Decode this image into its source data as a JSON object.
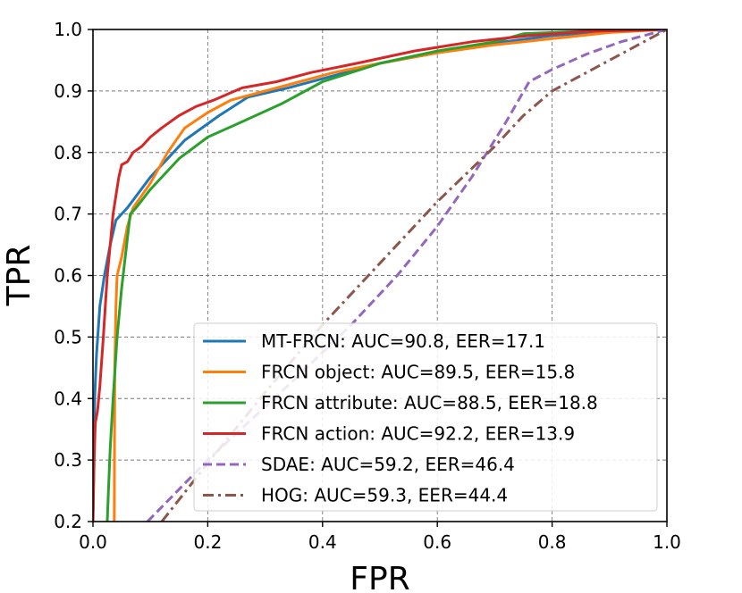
{
  "chart_data": {
    "type": "line",
    "title": "",
    "xlabel": "FPR",
    "ylabel": "TPR",
    "xlim": [
      0.0,
      1.0
    ],
    "ylim": [
      0.2,
      1.0
    ],
    "grid": true,
    "legend_position": "lower-right",
    "x_ticks": [
      {
        "value": 0.0,
        "label": "0.0"
      },
      {
        "value": 0.2,
        "label": "0.2"
      },
      {
        "value": 0.4,
        "label": "0.4"
      },
      {
        "value": 0.6,
        "label": "0.6"
      },
      {
        "value": 0.8,
        "label": "0.8"
      },
      {
        "value": 1.0,
        "label": "1.0"
      }
    ],
    "y_ticks": [
      {
        "value": 0.2,
        "label": "0.2"
      },
      {
        "value": 0.3,
        "label": "0.3"
      },
      {
        "value": 0.4,
        "label": "0.4"
      },
      {
        "value": 0.5,
        "label": "0.5"
      },
      {
        "value": 0.6,
        "label": "0.6"
      },
      {
        "value": 0.7,
        "label": "0.7"
      },
      {
        "value": 0.8,
        "label": "0.8"
      },
      {
        "value": 0.9,
        "label": "0.9"
      },
      {
        "value": 1.0,
        "label": "1.0"
      }
    ],
    "series": [
      {
        "name": "MT-FRCN: AUC=90.8, EER=17.1",
        "color": "#1f77b4",
        "dash": "solid",
        "points": [
          [
            0.0,
            0.2
          ],
          [
            0.003,
            0.4
          ],
          [
            0.006,
            0.47
          ],
          [
            0.012,
            0.55
          ],
          [
            0.02,
            0.6
          ],
          [
            0.03,
            0.65
          ],
          [
            0.04,
            0.69
          ],
          [
            0.06,
            0.71
          ],
          [
            0.1,
            0.76
          ],
          [
            0.16,
            0.82
          ],
          [
            0.22,
            0.86
          ],
          [
            0.27,
            0.89
          ],
          [
            0.34,
            0.905
          ],
          [
            0.42,
            0.925
          ],
          [
            0.5,
            0.945
          ],
          [
            0.6,
            0.962
          ],
          [
            0.7,
            0.978
          ],
          [
            0.8,
            0.99
          ],
          [
            0.9,
            0.997
          ],
          [
            1.0,
            1.0
          ]
        ]
      },
      {
        "name": "FRCN object: AUC=89.5, EER=15.8",
        "color": "#ff7f0e",
        "dash": "solid",
        "points": [
          [
            0.037,
            0.2
          ],
          [
            0.038,
            0.45
          ],
          [
            0.04,
            0.55
          ],
          [
            0.042,
            0.6
          ],
          [
            0.05,
            0.63
          ],
          [
            0.06,
            0.68
          ],
          [
            0.07,
            0.71
          ],
          [
            0.1,
            0.75
          ],
          [
            0.13,
            0.8
          ],
          [
            0.16,
            0.84
          ],
          [
            0.2,
            0.865
          ],
          [
            0.24,
            0.885
          ],
          [
            0.28,
            0.895
          ],
          [
            0.34,
            0.91
          ],
          [
            0.42,
            0.93
          ],
          [
            0.5,
            0.945
          ],
          [
            0.6,
            0.962
          ],
          [
            0.7,
            0.975
          ],
          [
            0.8,
            0.985
          ],
          [
            0.9,
            0.995
          ],
          [
            1.0,
            1.0
          ]
        ]
      },
      {
        "name": "FRCN attribute: AUC=88.5, EER=18.8",
        "color": "#2ca02c",
        "dash": "solid",
        "points": [
          [
            0.025,
            0.2
          ],
          [
            0.027,
            0.25
          ],
          [
            0.03,
            0.32
          ],
          [
            0.035,
            0.4
          ],
          [
            0.042,
            0.5
          ],
          [
            0.05,
            0.58
          ],
          [
            0.055,
            0.62
          ],
          [
            0.065,
            0.7
          ],
          [
            0.075,
            0.71
          ],
          [
            0.1,
            0.74
          ],
          [
            0.15,
            0.79
          ],
          [
            0.2,
            0.825
          ],
          [
            0.26,
            0.85
          ],
          [
            0.33,
            0.88
          ],
          [
            0.4,
            0.915
          ],
          [
            0.5,
            0.945
          ],
          [
            0.6,
            0.965
          ],
          [
            0.7,
            0.98
          ],
          [
            0.75,
            0.993
          ],
          [
            0.85,
            0.997
          ],
          [
            1.0,
            1.0
          ]
        ]
      },
      {
        "name": "FRCN action: AUC=92.2, EER=13.9",
        "color": "#d62728",
        "dash": "solid",
        "points": [
          [
            0.0,
            0.2
          ],
          [
            0.002,
            0.3
          ],
          [
            0.004,
            0.36
          ],
          [
            0.008,
            0.38
          ],
          [
            0.012,
            0.42
          ],
          [
            0.018,
            0.5
          ],
          [
            0.025,
            0.6
          ],
          [
            0.03,
            0.65
          ],
          [
            0.035,
            0.7
          ],
          [
            0.04,
            0.73
          ],
          [
            0.045,
            0.76
          ],
          [
            0.05,
            0.78
          ],
          [
            0.06,
            0.785
          ],
          [
            0.07,
            0.8
          ],
          [
            0.085,
            0.81
          ],
          [
            0.1,
            0.825
          ],
          [
            0.12,
            0.84
          ],
          [
            0.15,
            0.86
          ],
          [
            0.18,
            0.875
          ],
          [
            0.21,
            0.885
          ],
          [
            0.26,
            0.905
          ],
          [
            0.32,
            0.915
          ],
          [
            0.38,
            0.93
          ],
          [
            0.46,
            0.945
          ],
          [
            0.56,
            0.965
          ],
          [
            0.66,
            0.98
          ],
          [
            0.76,
            0.99
          ],
          [
            0.86,
            0.997
          ],
          [
            1.0,
            1.0
          ]
        ]
      },
      {
        "name": "SDAE: AUC=59.2, EER=46.4",
        "color": "#9467bd",
        "dash": "dashed",
        "points": [
          [
            0.095,
            0.2
          ],
          [
            0.2,
            0.3
          ],
          [
            0.35,
            0.43
          ],
          [
            0.45,
            0.52
          ],
          [
            0.53,
            0.6
          ],
          [
            0.6,
            0.68
          ],
          [
            0.66,
            0.76
          ],
          [
            0.72,
            0.85
          ],
          [
            0.76,
            0.915
          ],
          [
            0.8,
            0.935
          ],
          [
            0.86,
            0.96
          ],
          [
            0.92,
            0.98
          ],
          [
            1.0,
            1.0
          ]
        ]
      },
      {
        "name": "HOG: AUC=59.3, EER=44.4",
        "color": "#8c564b",
        "dash": "dashdot",
        "points": [
          [
            0.12,
            0.2
          ],
          [
            0.2,
            0.295
          ],
          [
            0.3,
            0.41
          ],
          [
            0.4,
            0.52
          ],
          [
            0.5,
            0.62
          ],
          [
            0.6,
            0.72
          ],
          [
            0.7,
            0.81
          ],
          [
            0.75,
            0.86
          ],
          [
            0.8,
            0.9
          ],
          [
            0.87,
            0.935
          ],
          [
            0.93,
            0.965
          ],
          [
            1.0,
            1.0
          ]
        ]
      }
    ]
  }
}
